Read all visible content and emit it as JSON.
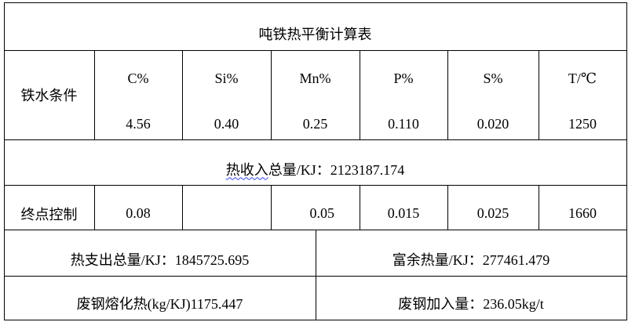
{
  "title": "吨铁热平衡计算表",
  "hot_metal": {
    "label": "铁水条件",
    "headers": [
      "C%",
      "Si%",
      "Mn%",
      "P%",
      "S%",
      "T/℃"
    ],
    "values": [
      "4.56",
      "0.40",
      "0.25",
      "0.110",
      "0.020",
      "1250"
    ]
  },
  "heat_income": {
    "label": "热收入",
    "rest": "总量/KJ：2123187.174"
  },
  "endpoint": {
    "label": "终点控制",
    "values": [
      "0.08",
      "",
      "0.05",
      "0.015",
      "0.025",
      "1660"
    ]
  },
  "heat_output": "热支出总量/KJ：1845725.695",
  "surplus_heat": "富余热量/KJ：277461.479",
  "scrap_melt_heat": "废钢熔化热(kg/KJ)1175.447",
  "scrap_addition": "废钢加入量：236.05kg/t"
}
